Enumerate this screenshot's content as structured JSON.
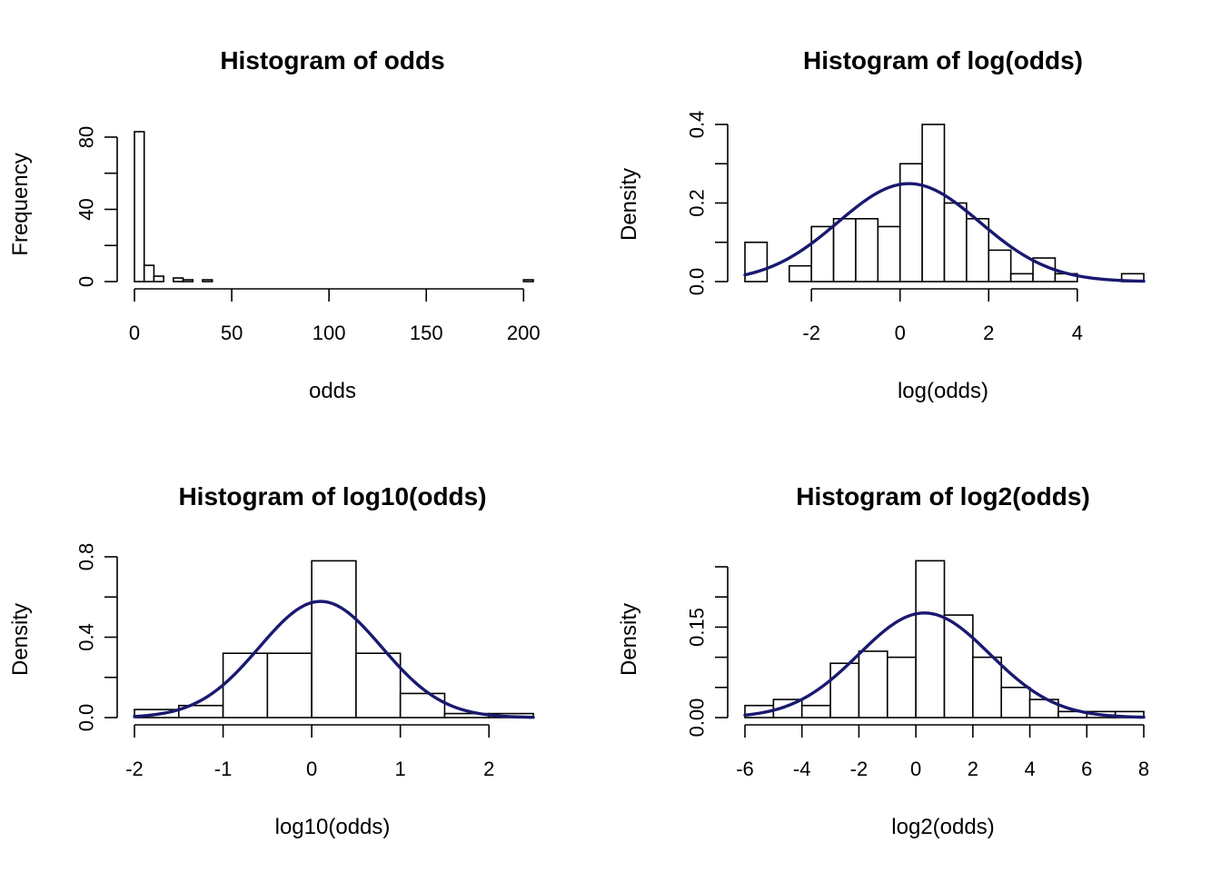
{
  "figure": {
    "background": "#ffffff"
  },
  "chart_data": [
    {
      "type": "bar",
      "subtype": "histogram",
      "title": "Histogram of odds",
      "xlabel": "odds",
      "ylabel": "Frequency",
      "xlim": [
        0,
        205
      ],
      "ylim": [
        0,
        85
      ],
      "xticks": [
        0,
        50,
        100,
        150,
        200
      ],
      "yticks": [
        0,
        20,
        40,
        60,
        80
      ],
      "ytick_labels": [
        "0",
        "",
        "40",
        "",
        "80"
      ],
      "bins": [
        {
          "x0": 0,
          "x1": 5,
          "value": 83
        },
        {
          "x0": 5,
          "x1": 10,
          "value": 9
        },
        {
          "x0": 10,
          "x1": 15,
          "value": 3
        },
        {
          "x0": 15,
          "x1": 20,
          "value": 0
        },
        {
          "x0": 20,
          "x1": 25,
          "value": 2
        },
        {
          "x0": 25,
          "x1": 30,
          "value": 1
        },
        {
          "x0": 30,
          "x1": 35,
          "value": 0
        },
        {
          "x0": 35,
          "x1": 40,
          "value": 1
        },
        {
          "x0": 200,
          "x1": 205,
          "value": 1
        }
      ]
    },
    {
      "type": "bar",
      "subtype": "histogram",
      "title": "Histogram of log(odds)",
      "xlabel": "log(odds)",
      "ylabel": "Density",
      "xlim": [
        -3.5,
        5.5
      ],
      "ylim": [
        0,
        0.4
      ],
      "xticks": [
        -2,
        0,
        2,
        4
      ],
      "yticks": [
        0,
        0.1,
        0.2,
        0.3,
        0.4
      ],
      "ytick_labels": [
        "0.0",
        "",
        "0.2",
        "",
        "0.4"
      ],
      "bins": [
        {
          "x0": -3.5,
          "x1": -3.0,
          "value": 0.1
        },
        {
          "x0": -3.0,
          "x1": -2.5,
          "value": 0.0
        },
        {
          "x0": -2.5,
          "x1": -2.0,
          "value": 0.04
        },
        {
          "x0": -2.0,
          "x1": -1.5,
          "value": 0.14
        },
        {
          "x0": -1.5,
          "x1": -1.0,
          "value": 0.16
        },
        {
          "x0": -1.0,
          "x1": -0.5,
          "value": 0.16
        },
        {
          "x0": -0.5,
          "x1": 0.0,
          "value": 0.14
        },
        {
          "x0": 0.0,
          "x1": 0.5,
          "value": 0.3
        },
        {
          "x0": 0.5,
          "x1": 1.0,
          "value": 0.4
        },
        {
          "x0": 1.0,
          "x1": 1.5,
          "value": 0.2
        },
        {
          "x0": 1.5,
          "x1": 2.0,
          "value": 0.16
        },
        {
          "x0": 2.0,
          "x1": 2.5,
          "value": 0.08
        },
        {
          "x0": 2.5,
          "x1": 3.0,
          "value": 0.02
        },
        {
          "x0": 3.0,
          "x1": 3.5,
          "value": 0.06
        },
        {
          "x0": 3.5,
          "x1": 4.0,
          "value": 0.02
        },
        {
          "x0": 4.0,
          "x1": 4.5,
          "value": 0.0
        },
        {
          "x0": 4.5,
          "x1": 5.0,
          "value": 0.0
        },
        {
          "x0": 5.0,
          "x1": 5.5,
          "value": 0.02
        }
      ],
      "density_curve": {
        "distribution": "normal",
        "mean": 0.2,
        "sd": 1.6,
        "color": "#191970",
        "from": -3.5,
        "to": 5.5
      }
    },
    {
      "type": "bar",
      "subtype": "histogram",
      "title": "Histogram of log10(odds)",
      "xlabel": "log10(odds)",
      "ylabel": "Density",
      "xlim": [
        -2,
        2.5
      ],
      "ylim": [
        0,
        0.8
      ],
      "xticks": [
        -2,
        -1,
        0,
        1,
        2
      ],
      "yticks": [
        0,
        0.2,
        0.4,
        0.6,
        0.8
      ],
      "ytick_labels": [
        "0.0",
        "",
        "0.4",
        "",
        "0.8"
      ],
      "bins": [
        {
          "x0": -2.0,
          "x1": -1.5,
          "value": 0.04
        },
        {
          "x0": -1.5,
          "x1": -1.0,
          "value": 0.06
        },
        {
          "x0": -1.0,
          "x1": -0.5,
          "value": 0.32
        },
        {
          "x0": -0.5,
          "x1": 0.0,
          "value": 0.32
        },
        {
          "x0": 0.0,
          "x1": 0.5,
          "value": 0.78
        },
        {
          "x0": 0.5,
          "x1": 1.0,
          "value": 0.32
        },
        {
          "x0": 1.0,
          "x1": 1.5,
          "value": 0.12
        },
        {
          "x0": 1.5,
          "x1": 2.0,
          "value": 0.02
        },
        {
          "x0": 2.0,
          "x1": 2.5,
          "value": 0.02
        }
      ],
      "density_curve": {
        "distribution": "normal",
        "mean": 0.1,
        "sd": 0.69,
        "color": "#191970",
        "from": -2,
        "to": 2.5
      }
    },
    {
      "type": "bar",
      "subtype": "histogram",
      "title": "Histogram of log2(odds)",
      "xlabel": "log2(odds)",
      "ylabel": "Density",
      "xlim": [
        -6,
        8
      ],
      "ylim": [
        0,
        0.25
      ],
      "xticks": [
        -6,
        -4,
        -2,
        0,
        2,
        4,
        6,
        8
      ],
      "yticks": [
        0,
        0.05,
        0.1,
        0.15,
        0.2,
        0.25
      ],
      "ytick_labels": [
        "0.00",
        "",
        "",
        "0.15",
        "",
        ""
      ],
      "bins": [
        {
          "x0": -6,
          "x1": -5,
          "value": 0.02
        },
        {
          "x0": -5,
          "x1": -4,
          "value": 0.03
        },
        {
          "x0": -4,
          "x1": -3,
          "value": 0.02
        },
        {
          "x0": -3,
          "x1": -2,
          "value": 0.09
        },
        {
          "x0": -2,
          "x1": -1,
          "value": 0.11
        },
        {
          "x0": -1,
          "x1": 0,
          "value": 0.1
        },
        {
          "x0": 0,
          "x1": 1,
          "value": 0.26
        },
        {
          "x0": 1,
          "x1": 2,
          "value": 0.17
        },
        {
          "x0": 2,
          "x1": 3,
          "value": 0.1
        },
        {
          "x0": 3,
          "x1": 4,
          "value": 0.05
        },
        {
          "x0": 4,
          "x1": 5,
          "value": 0.03
        },
        {
          "x0": 5,
          "x1": 6,
          "value": 0.01
        },
        {
          "x0": 6,
          "x1": 7,
          "value": 0.01
        },
        {
          "x0": 7,
          "x1": 8,
          "value": 0.01
        }
      ],
      "density_curve": {
        "distribution": "normal",
        "mean": 0.3,
        "sd": 2.3,
        "color": "#191970",
        "from": -6,
        "to": 8
      }
    }
  ]
}
